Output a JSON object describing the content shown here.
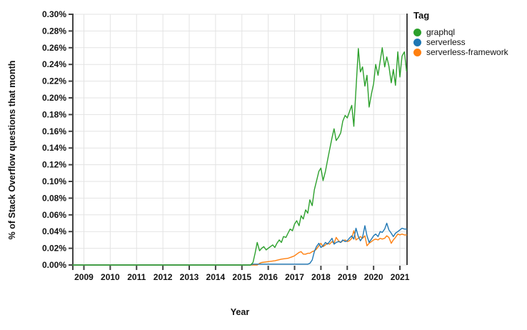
{
  "chart_data": {
    "type": "line",
    "title": "",
    "xlabel": "Year",
    "ylabel": "% of Stack Overflow questions that month",
    "x_domain": [
      2008.58,
      2021.27
    ],
    "y_domain": [
      0,
      0.3
    ],
    "grid": true,
    "legend": {
      "title": "Tag",
      "position": "right"
    },
    "x_ticks": [
      {
        "v": 2009,
        "label": "2009"
      },
      {
        "v": 2010,
        "label": "2010"
      },
      {
        "v": 2011,
        "label": "2011"
      },
      {
        "v": 2012,
        "label": "2012"
      },
      {
        "v": 2013,
        "label": "2013"
      },
      {
        "v": 2014,
        "label": "2014"
      },
      {
        "v": 2015,
        "label": "2015"
      },
      {
        "v": 2016,
        "label": "2016"
      },
      {
        "v": 2017,
        "label": "2017"
      },
      {
        "v": 2018,
        "label": "2018"
      },
      {
        "v": 2019,
        "label": "2019"
      },
      {
        "v": 2020,
        "label": "2020"
      },
      {
        "v": 2021,
        "label": "2021"
      }
    ],
    "y_ticks": [
      {
        "v": 0.0,
        "label": "0.00%"
      },
      {
        "v": 0.02,
        "label": "0.02%"
      },
      {
        "v": 0.04,
        "label": "0.04%"
      },
      {
        "v": 0.06,
        "label": "0.06%"
      },
      {
        "v": 0.08,
        "label": "0.08%"
      },
      {
        "v": 0.1,
        "label": "0.10%"
      },
      {
        "v": 0.12,
        "label": "0.12%"
      },
      {
        "v": 0.14,
        "label": "0.14%"
      },
      {
        "v": 0.16,
        "label": "0.16%"
      },
      {
        "v": 0.18,
        "label": "0.18%"
      },
      {
        "v": 0.2,
        "label": "0.20%"
      },
      {
        "v": 0.22,
        "label": "0.22%"
      },
      {
        "v": 0.24,
        "label": "0.24%"
      },
      {
        "v": 0.26,
        "label": "0.26%"
      },
      {
        "v": 0.28,
        "label": "0.28%"
      },
      {
        "v": 0.3,
        "label": "0.30%"
      }
    ],
    "draw_order": [
      2,
      1,
      0
    ],
    "colors": {
      "graphql": "#2ca02c",
      "serverless": "#1f77b4",
      "serverless_framework": "#ff7f0e"
    },
    "series": [
      {
        "name": "graphql",
        "color": "#2ca02c",
        "points": [
          [
            2008.58,
            0
          ],
          [
            2015.33,
            0
          ],
          [
            2015.42,
            0.003
          ],
          [
            2015.5,
            0.014
          ],
          [
            2015.58,
            0.027
          ],
          [
            2015.67,
            0.017
          ],
          [
            2015.75,
            0.02
          ],
          [
            2015.83,
            0.022
          ],
          [
            2015.92,
            0.018
          ],
          [
            2016,
            0.02
          ],
          [
            2016.08,
            0.022
          ],
          [
            2016.17,
            0.024
          ],
          [
            2016.25,
            0.021
          ],
          [
            2016.33,
            0.026
          ],
          [
            2016.42,
            0.03
          ],
          [
            2016.5,
            0.027
          ],
          [
            2016.58,
            0.034
          ],
          [
            2016.67,
            0.033
          ],
          [
            2016.75,
            0.038
          ],
          [
            2016.83,
            0.043
          ],
          [
            2016.92,
            0.041
          ],
          [
            2017,
            0.049
          ],
          [
            2017.08,
            0.053
          ],
          [
            2017.17,
            0.047
          ],
          [
            2017.25,
            0.059
          ],
          [
            2017.33,
            0.055
          ],
          [
            2017.42,
            0.066
          ],
          [
            2017.5,
            0.062
          ],
          [
            2017.58,
            0.078
          ],
          [
            2017.67,
            0.071
          ],
          [
            2017.75,
            0.09
          ],
          [
            2017.83,
            0.1
          ],
          [
            2017.92,
            0.112
          ],
          [
            2018,
            0.116
          ],
          [
            2018.08,
            0.101
          ],
          [
            2018.17,
            0.112
          ],
          [
            2018.25,
            0.125
          ],
          [
            2018.33,
            0.138
          ],
          [
            2018.42,
            0.152
          ],
          [
            2018.5,
            0.163
          ],
          [
            2018.58,
            0.149
          ],
          [
            2018.67,
            0.153
          ],
          [
            2018.75,
            0.158
          ],
          [
            2018.83,
            0.172
          ],
          [
            2018.92,
            0.179
          ],
          [
            2019,
            0.176
          ],
          [
            2019.08,
            0.183
          ],
          [
            2019.17,
            0.191
          ],
          [
            2019.25,
            0.166
          ],
          [
            2019.33,
            0.21
          ],
          [
            2019.42,
            0.259
          ],
          [
            2019.5,
            0.231
          ],
          [
            2019.58,
            0.237
          ],
          [
            2019.67,
            0.214
          ],
          [
            2019.75,
            0.227
          ],
          [
            2019.83,
            0.189
          ],
          [
            2019.92,
            0.205
          ],
          [
            2020,
            0.217
          ],
          [
            2020.08,
            0.24
          ],
          [
            2020.17,
            0.227
          ],
          [
            2020.25,
            0.244
          ],
          [
            2020.33,
            0.26
          ],
          [
            2020.42,
            0.237
          ],
          [
            2020.5,
            0.249
          ],
          [
            2020.58,
            0.238
          ],
          [
            2020.67,
            0.218
          ],
          [
            2020.75,
            0.234
          ],
          [
            2020.83,
            0.215
          ],
          [
            2020.92,
            0.255
          ],
          [
            2021,
            0.225
          ],
          [
            2021.08,
            0.25
          ],
          [
            2021.17,
            0.255
          ],
          [
            2021.25,
            0.232
          ]
        ]
      },
      {
        "name": "serverless",
        "color": "#1f77b4",
        "points": [
          [
            2008.58,
            0
          ],
          [
            2015.33,
            0
          ],
          [
            2015.42,
            0.001
          ],
          [
            2017.5,
            0.001
          ],
          [
            2017.58,
            0.002
          ],
          [
            2017.67,
            0.006
          ],
          [
            2017.75,
            0.016
          ],
          [
            2017.83,
            0.022
          ],
          [
            2017.92,
            0.026
          ],
          [
            2018,
            0.021
          ],
          [
            2018.08,
            0.023
          ],
          [
            2018.17,
            0.027
          ],
          [
            2018.25,
            0.025
          ],
          [
            2018.33,
            0.028
          ],
          [
            2018.42,
            0.032
          ],
          [
            2018.5,
            0.025
          ],
          [
            2018.58,
            0.027
          ],
          [
            2018.67,
            0.028
          ],
          [
            2018.75,
            0.027
          ],
          [
            2018.83,
            0.03
          ],
          [
            2018.92,
            0.028
          ],
          [
            2019,
            0.029
          ],
          [
            2019.08,
            0.032
          ],
          [
            2019.17,
            0.035
          ],
          [
            2019.25,
            0.031
          ],
          [
            2019.33,
            0.044
          ],
          [
            2019.42,
            0.034
          ],
          [
            2019.5,
            0.029
          ],
          [
            2019.58,
            0.033
          ],
          [
            2019.67,
            0.047
          ],
          [
            2019.75,
            0.035
          ],
          [
            2019.83,
            0.027
          ],
          [
            2019.92,
            0.031
          ],
          [
            2020,
            0.035
          ],
          [
            2020.08,
            0.037
          ],
          [
            2020.17,
            0.034
          ],
          [
            2020.25,
            0.04
          ],
          [
            2020.33,
            0.039
          ],
          [
            2020.42,
            0.043
          ],
          [
            2020.5,
            0.05
          ],
          [
            2020.58,
            0.042
          ],
          [
            2020.67,
            0.038
          ],
          [
            2020.75,
            0.034
          ],
          [
            2020.83,
            0.038
          ],
          [
            2020.92,
            0.04
          ],
          [
            2021,
            0.042
          ],
          [
            2021.08,
            0.044
          ],
          [
            2021.17,
            0.043
          ],
          [
            2021.25,
            0.043
          ]
        ]
      },
      {
        "name": "serverless-framework",
        "color": "#ff7f0e",
        "points": [
          [
            2008.58,
            0
          ],
          [
            2015.58,
            0
          ],
          [
            2015.67,
            0.002
          ],
          [
            2015.75,
            0.003
          ],
          [
            2016,
            0.004
          ],
          [
            2016.25,
            0.005
          ],
          [
            2016.5,
            0.007
          ],
          [
            2016.75,
            0.008
          ],
          [
            2016.92,
            0.01
          ],
          [
            2017,
            0.011
          ],
          [
            2017.08,
            0.013
          ],
          [
            2017.17,
            0.015
          ],
          [
            2017.25,
            0.016
          ],
          [
            2017.33,
            0.013
          ],
          [
            2017.42,
            0.013
          ],
          [
            2017.5,
            0.014
          ],
          [
            2017.58,
            0.014
          ],
          [
            2017.67,
            0.016
          ],
          [
            2017.75,
            0.017
          ],
          [
            2017.83,
            0.019
          ],
          [
            2017.92,
            0.023
          ],
          [
            2018,
            0.026
          ],
          [
            2018.08,
            0.022
          ],
          [
            2018.17,
            0.024
          ],
          [
            2018.25,
            0.026
          ],
          [
            2018.33,
            0.025
          ],
          [
            2018.42,
            0.028
          ],
          [
            2018.5,
            0.026
          ],
          [
            2018.58,
            0.033
          ],
          [
            2018.67,
            0.029
          ],
          [
            2018.75,
            0.027
          ],
          [
            2018.83,
            0.029
          ],
          [
            2018.92,
            0.03
          ],
          [
            2019,
            0.028
          ],
          [
            2019.08,
            0.029
          ],
          [
            2019.17,
            0.032
          ],
          [
            2019.25,
            0.041
          ],
          [
            2019.33,
            0.03
          ],
          [
            2019.42,
            0.032
          ],
          [
            2019.5,
            0.034
          ],
          [
            2019.58,
            0.032
          ],
          [
            2019.67,
            0.035
          ],
          [
            2019.75,
            0.023
          ],
          [
            2019.83,
            0.026
          ],
          [
            2019.92,
            0.028
          ],
          [
            2020,
            0.03
          ],
          [
            2020.08,
            0.031
          ],
          [
            2020.17,
            0.03
          ],
          [
            2020.25,
            0.032
          ],
          [
            2020.33,
            0.031
          ],
          [
            2020.42,
            0.032
          ],
          [
            2020.5,
            0.035
          ],
          [
            2020.58,
            0.033
          ],
          [
            2020.67,
            0.026
          ],
          [
            2020.75,
            0.03
          ],
          [
            2020.83,
            0.033
          ],
          [
            2020.92,
            0.037
          ],
          [
            2021,
            0.036
          ],
          [
            2021.08,
            0.037
          ],
          [
            2021.17,
            0.036
          ],
          [
            2021.25,
            0.036
          ]
        ]
      }
    ],
    "style": {
      "gridline_color": "#e3e3e3",
      "axis_color": "#424242",
      "text_color": "#111111",
      "background": "#ffffff"
    }
  }
}
